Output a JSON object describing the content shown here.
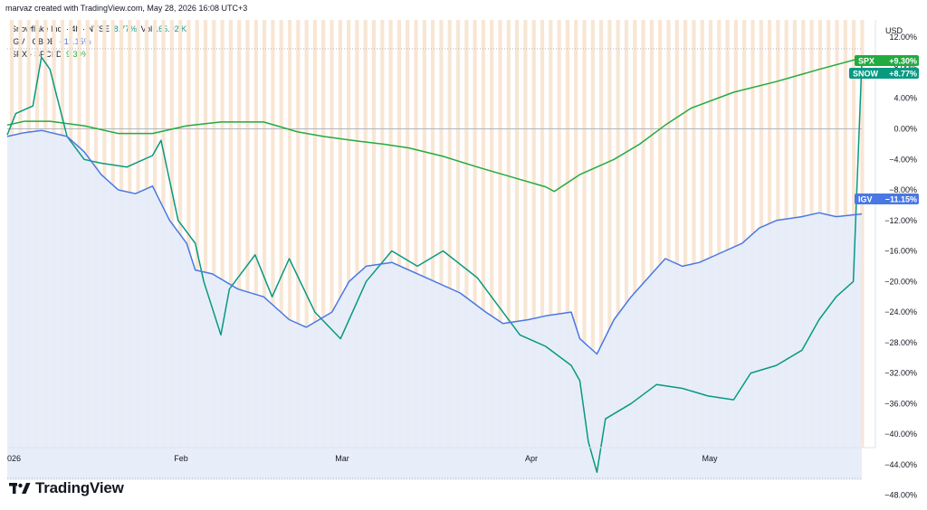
{
  "header": {
    "credit": "marvaz created with TradingView.com, May 28, 2026 16:08 UTC+3"
  },
  "legend": {
    "main": {
      "name": "Snowflake Inc. · 4h · NYSE",
      "change": "8.77%",
      "vol_label": "Vol",
      "vol_value": "165.92 K"
    },
    "igv": {
      "name": "IGV · CBOE",
      "change": "−11.15%"
    },
    "spx": {
      "name": "SPX · SPCFD",
      "change": "9.30%"
    }
  },
  "currency": "USD",
  "brand": {
    "name": "TradingView"
  },
  "colors": {
    "snow": "#089981",
    "spx": "#22ab3f",
    "igv": "#4978e4",
    "igv_fill": "#e4ecf9",
    "stripe": "#f8e6d4"
  },
  "chart_data": {
    "type": "line",
    "ylabel_unit": "%",
    "ylim": [
      -48,
      14
    ],
    "y_ticks": [
      "12.00%",
      "8.00%",
      "4.00%",
      "0.00%",
      "−4.00%",
      "−8.00%",
      "−12.00%",
      "−16.00%",
      "−20.00%",
      "−24.00%",
      "−28.00%",
      "−32.00%",
      "−36.00%",
      "−40.00%",
      "−44.00%",
      "−48.00%"
    ],
    "x_ticks": [
      "026",
      "Feb",
      "Mar",
      "Apr",
      "May"
    ],
    "grid": false,
    "series": [
      {
        "name": "SPX",
        "tag": "SPX",
        "last": "+9.30%",
        "last_value": 9.3,
        "points": [
          [
            0,
            0.5
          ],
          [
            2,
            1.0
          ],
          [
            5,
            1.0
          ],
          [
            9,
            0.4
          ],
          [
            13,
            -0.6
          ],
          [
            17,
            -0.6
          ],
          [
            21,
            0.4
          ],
          [
            25,
            0.9
          ],
          [
            30,
            0.9
          ],
          [
            34,
            -0.4
          ],
          [
            37,
            -1.0
          ],
          [
            41,
            -1.6
          ],
          [
            44,
            -2.0
          ],
          [
            47,
            -2.5
          ],
          [
            51,
            -3.6
          ],
          [
            55,
            -5.0
          ],
          [
            59,
            -6.3
          ],
          [
            63,
            -7.6
          ],
          [
            64,
            -8.2
          ],
          [
            67,
            -6.0
          ],
          [
            71,
            -4.0
          ],
          [
            74,
            -2.0
          ],
          [
            77,
            0.5
          ],
          [
            80,
            2.7
          ],
          [
            85,
            4.8
          ],
          [
            90,
            6.2
          ],
          [
            95,
            7.8
          ],
          [
            100,
            9.3
          ]
        ]
      },
      {
        "name": "SNOW",
        "tag": "SNOW",
        "last": "+8.77%",
        "last_value": 8.77,
        "points": [
          [
            0,
            -0.8
          ],
          [
            1,
            2.0
          ],
          [
            3,
            3.0
          ],
          [
            4,
            9.4
          ],
          [
            5,
            7.8
          ],
          [
            7,
            -1.0
          ],
          [
            9,
            -4.0
          ],
          [
            11,
            -4.5
          ],
          [
            14,
            -5.0
          ],
          [
            17,
            -3.5
          ],
          [
            18,
            -1.5
          ],
          [
            19,
            -6.8
          ],
          [
            20,
            -12.0
          ],
          [
            22,
            -15.0
          ],
          [
            23,
            -20.0
          ],
          [
            25,
            -27.0
          ],
          [
            26,
            -21.0
          ],
          [
            29,
            -16.5
          ],
          [
            31,
            -22.0
          ],
          [
            33,
            -17.0
          ],
          [
            36,
            -24.0
          ],
          [
            39,
            -27.5
          ],
          [
            42,
            -20.0
          ],
          [
            45,
            -16.0
          ],
          [
            48,
            -18.0
          ],
          [
            51,
            -16.0
          ],
          [
            55,
            -19.5
          ],
          [
            58,
            -24.0
          ],
          [
            60,
            -27.0
          ],
          [
            63,
            -28.5
          ],
          [
            66,
            -31.0
          ],
          [
            67,
            -33.0
          ],
          [
            68,
            -41.0
          ],
          [
            69,
            -45.0
          ],
          [
            70,
            -38.0
          ],
          [
            73,
            -36.0
          ],
          [
            76,
            -33.5
          ],
          [
            79,
            -34.0
          ],
          [
            82,
            -35.0
          ],
          [
            85,
            -35.5
          ],
          [
            87,
            -32.0
          ],
          [
            90,
            -31.0
          ],
          [
            93,
            -29.0
          ],
          [
            95,
            -25.0
          ],
          [
            97,
            -22.0
          ],
          [
            99,
            -20.0
          ],
          [
            100,
            8.77
          ]
        ]
      },
      {
        "name": "IGV",
        "tag": "IGV",
        "last": "−11.15%",
        "last_value": -11.15,
        "points": [
          [
            0,
            -1.0
          ],
          [
            2,
            -0.5
          ],
          [
            4,
            -0.2
          ],
          [
            7,
            -1.0
          ],
          [
            9,
            -3.0
          ],
          [
            11,
            -6.0
          ],
          [
            13,
            -8.0
          ],
          [
            15,
            -8.5
          ],
          [
            17,
            -7.5
          ],
          [
            19,
            -12.0
          ],
          [
            21,
            -15.0
          ],
          [
            22,
            -18.5
          ],
          [
            24,
            -19.0
          ],
          [
            27,
            -21.0
          ],
          [
            30,
            -22.0
          ],
          [
            33,
            -25.0
          ],
          [
            35,
            -26.0
          ],
          [
            38,
            -24.0
          ],
          [
            40,
            -20.0
          ],
          [
            42,
            -18.0
          ],
          [
            45,
            -17.5
          ],
          [
            49,
            -19.5
          ],
          [
            53,
            -21.5
          ],
          [
            56,
            -24.0
          ],
          [
            58,
            -25.5
          ],
          [
            61,
            -25.0
          ],
          [
            63,
            -24.5
          ],
          [
            66,
            -24.0
          ],
          [
            67,
            -27.5
          ],
          [
            68,
            -28.5
          ],
          [
            69,
            -29.5
          ],
          [
            71,
            -25.0
          ],
          [
            73,
            -22.0
          ],
          [
            75,
            -19.5
          ],
          [
            77,
            -17.0
          ],
          [
            79,
            -18.0
          ],
          [
            81,
            -17.5
          ],
          [
            84,
            -16.0
          ],
          [
            86,
            -15.0
          ],
          [
            88,
            -13.0
          ],
          [
            90,
            -12.0
          ],
          [
            93,
            -11.5
          ],
          [
            95,
            -11.0
          ],
          [
            97,
            -11.5
          ],
          [
            100,
            -11.15
          ]
        ]
      }
    ]
  }
}
